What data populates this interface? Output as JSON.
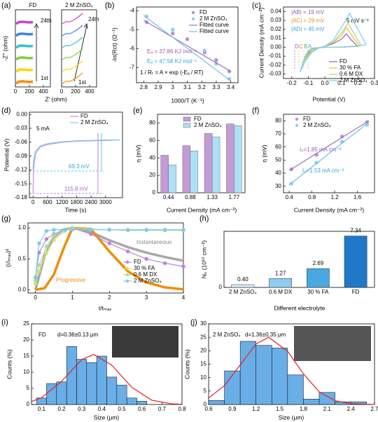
{
  "chart_data": [
    {
      "type": "line",
      "panel": "(a)",
      "title": "FD",
      "xlabel": "Z' (ohm)",
      "ylabel": "-Z'' (ohm)",
      "annotations": [
        "24th",
        "1st"
      ],
      "x": [
        10,
        50,
        100,
        150,
        200,
        250
      ],
      "xlim": [
        0,
        500
      ],
      "xticks": [
        0,
        200,
        400
      ],
      "ylim": [
        0,
        1100
      ],
      "yticks": [],
      "series": [
        {
          "color": "#ff8c00",
          "values": [
            50,
            75,
            80,
            75,
            70,
            75
          ]
        },
        {
          "color": "#ffd700",
          "values": [
            220,
            245,
            250,
            245,
            240,
            245
          ]
        },
        {
          "color": "#7fd03a",
          "values": [
            390,
            415,
            420,
            415,
            410,
            415
          ]
        },
        {
          "color": "#30c8c8",
          "values": [
            560,
            585,
            590,
            585,
            580,
            585
          ]
        },
        {
          "color": "#4080f0",
          "values": [
            730,
            755,
            760,
            755,
            750,
            755
          ]
        },
        {
          "color": "#d040d0",
          "values": [
            900,
            925,
            930,
            925,
            920,
            925
          ]
        }
      ]
    },
    {
      "type": "line",
      "title": "2 M ZnSO₄",
      "annotations": [
        "24th",
        "1st"
      ],
      "x": [
        10,
        60,
        120,
        180,
        240,
        300
      ],
      "xlim": [
        0,
        500
      ],
      "xticks": [
        0,
        200,
        400
      ],
      "ylim": [
        0,
        1100
      ],
      "yticks": [],
      "series": [
        {
          "color": "#ff8c00",
          "values": [
            50,
            80,
            80,
            110,
            150,
            200
          ]
        },
        {
          "color": "#ffd700",
          "values": [
            220,
            250,
            250,
            280,
            320,
            370
          ]
        },
        {
          "color": "#7fd03a",
          "values": [
            390,
            420,
            420,
            450,
            490,
            540
          ]
        },
        {
          "color": "#30c8c8",
          "values": [
            560,
            590,
            590,
            620,
            660,
            710
          ]
        },
        {
          "color": "#4080f0",
          "values": [
            730,
            760,
            760,
            790,
            830,
            880
          ]
        },
        {
          "color": "#d040d0",
          "values": [
            900,
            930,
            930,
            960,
            1000,
            1050
          ]
        }
      ]
    },
    {
      "type": "line",
      "panel": "(b)",
      "xlabel": "1000/T (K⁻¹)",
      "ylabel": "-ln(Rct) (Ω⁻¹)",
      "annotations": [
        "Eₐ = 37.86 KJ mol⁻¹",
        "Eₐ = 47.58 KJ mol⁻¹",
        "1 / Rₜ = A × exp (-Eₐ / RT)"
      ],
      "xlim": [
        2.75,
        3.45
      ],
      "xticks": [
        2.8,
        2.9,
        3.0,
        3.1,
        3.2,
        3.3,
        3.4
      ],
      "ylim": [
        -7.8,
        -3.8
      ],
      "yticks": [
        -4,
        -5,
        -6,
        -7
      ],
      "series": [
        {
          "name": "FD",
          "color": "#b98fd6",
          "style": "markers",
          "x": [
            2.82,
            3.0,
            3.1,
            3.22,
            3.3,
            3.39
          ],
          "values": [
            -4.6,
            -5.2,
            -5.5,
            -6.2,
            -6.6,
            -7.2
          ]
        },
        {
          "name": "2 M ZnSO₄",
          "color": "#8ccfee",
          "style": "markers",
          "x": [
            2.82,
            3.0,
            3.22,
            3.3,
            3.39
          ],
          "values": [
            -4.3,
            -5.0,
            -6.1,
            -6.8,
            -7.6
          ]
        },
        {
          "name": "Fitted curve",
          "color": "#a070c0",
          "x": [
            2.8,
            3.4
          ],
          "values": [
            -4.5,
            -7.2
          ]
        },
        {
          "name": "Fitted curve",
          "color": "#6cc0e8",
          "x": [
            2.8,
            3.4
          ],
          "values": [
            -4.25,
            -7.7
          ]
        }
      ]
    },
    {
      "type": "line",
      "panel": "(c)",
      "xlabel": "Potential (V)",
      "ylabel": "Current Density (mA cm⁻²)",
      "annotations": [
        "|AB| = 19 mV",
        "|AC| = 29 mV",
        "|AD| = 45 mV",
        "5 mV s⁻¹",
        "D",
        "C",
        "B",
        "A"
      ],
      "xlim": [
        -0.25,
        0.3
      ],
      "xticks": [
        -0.2,
        -0.1,
        {
          "value": 0,
          "label": "0.0"
        },
        0.1,
        0.2,
        0.3
      ],
      "ylim": [
        -0.035,
        0.045
      ],
      "yticks": [
        -0.03,
        -0.02,
        -0.01,
        {
          "value": 0,
          "label": "0.00"
        },
        0.01,
        0.02,
        0.03,
        0.04
      ],
      "series": [
        {
          "name": "FD",
          "color": "#9b59b6",
          "x": [
            -0.12,
            -0.1,
            -0.07,
            -0.04,
            0,
            0.05,
            0.1,
            0.13,
            0.16,
            0.2,
            0.16,
            0.1,
            0,
            -0.07,
            -0.1,
            -0.12
          ],
          "values": [
            -0.012,
            -0.007,
            -0.003,
            -0.001,
            0.001,
            0.004,
            0.009,
            0.015,
            0.008,
            0.001,
            0.001,
            0,
            0,
            -0.001,
            -0.004,
            -0.012
          ]
        },
        {
          "name": "30 % FA",
          "color": "#f0b840",
          "x": [
            -0.13,
            -0.1,
            -0.07,
            -0.04,
            0,
            0.05,
            0.1,
            0.13,
            0.17,
            0.21,
            0.17,
            0.1,
            0,
            -0.07,
            -0.1,
            -0.13
          ],
          "values": [
            -0.017,
            -0.009,
            -0.003,
            -0.001,
            0.001,
            0.005,
            0.013,
            0.022,
            0.011,
            0.002,
            0.001,
            0,
            0,
            -0.001,
            -0.006,
            -0.017
          ]
        },
        {
          "name": "0.6 M DX",
          "color": "#a8d878",
          "x": [
            -0.14,
            -0.11,
            -0.08,
            -0.04,
            0,
            0.05,
            0.1,
            0.14,
            0.18,
            0.22,
            0.18,
            0.1,
            0,
            -0.08,
            -0.11,
            -0.14
          ],
          "values": [
            -0.02,
            -0.011,
            -0.004,
            -0.001,
            0.001,
            0.006,
            0.016,
            0.027,
            0.014,
            0.002,
            0.001,
            0,
            0,
            -0.001,
            -0.007,
            -0.02
          ]
        },
        {
          "name": "2 M ZnSO₄",
          "color": "#7ecbef",
          "x": [
            -0.15,
            -0.12,
            -0.08,
            -0.04,
            0,
            0.05,
            0.1,
            0.15,
            0.2,
            0.25,
            0.2,
            0.1,
            0,
            -0.08,
            -0.12,
            -0.15
          ],
          "values": [
            -0.028,
            -0.016,
            -0.006,
            -0.001,
            0.001,
            0.008,
            0.022,
            0.038,
            0.02,
            0.003,
            0.001,
            0,
            0,
            -0.002,
            -0.01,
            -0.028
          ]
        }
      ]
    },
    {
      "type": "line",
      "panel": "(d)",
      "xlabel": "Time (s)",
      "ylabel": "Potential (V)",
      "annotations": [
        "5 mA",
        "69.3 mV",
        "115.8 mV"
      ],
      "x": [
        0,
        20,
        100,
        300,
        600,
        1200,
        1800,
        2400,
        3000,
        3600
      ],
      "xlim": [
        -150,
        3700
      ],
      "xticks": [
        0,
        600,
        1200,
        1800,
        2400,
        3000
      ],
      "ylim": [
        -0.18,
        0.005
      ],
      "yticks": [
        {
          "value": 0,
          "label": "0.00"
        },
        -0.03,
        -0.06,
        -0.09,
        -0.12,
        -0.15,
        -0.18
      ],
      "series": [
        {
          "name": "FD",
          "color": "#c090e0",
          "values": [
            -0.17,
            -0.12,
            -0.085,
            -0.07,
            -0.065,
            -0.06,
            -0.058,
            -0.057,
            -0.056,
            -0.055
          ]
        },
        {
          "name": "2 M ZnSO₄",
          "color": "#7ecbef",
          "values": [
            -0.12,
            -0.1,
            -0.08,
            -0.068,
            -0.063,
            -0.059,
            -0.057,
            -0.056,
            -0.055,
            -0.055
          ]
        }
      ]
    },
    {
      "type": "bar",
      "panel": "(e)",
      "xlabel": "Current Density (mA cm⁻²)",
      "ylabel": "η (mV)",
      "categories": [
        "0.44",
        "0.88",
        "1.33",
        "1.77"
      ],
      "ylim": [
        0,
        90
      ],
      "yticks": [
        0,
        20,
        40,
        60,
        80
      ],
      "series": [
        {
          "name": "FD",
          "color": "#c59bd6",
          "values": [
            43,
            54,
            68,
            79
          ]
        },
        {
          "name": "2 M ZnSO₄",
          "color": "#aee0f5",
          "values": [
            32,
            48,
            64,
            77
          ]
        }
      ]
    },
    {
      "type": "line",
      "panel": "(f)",
      "xlabel": "Current Density (mA cm⁻²)",
      "ylabel": "η (mV)",
      "annotations": [
        "I₀=1.85 mA cm⁻²",
        "I₀=1.53 mA cm⁻²"
      ],
      "xlim": [
        0.3,
        1.9
      ],
      "xticks": [
        0.4,
        0.8,
        1.2,
        1.6
      ],
      "ylim": [
        25,
        85
      ],
      "yticks": [
        30,
        40,
        50,
        60,
        70,
        80
      ],
      "series": [
        {
          "name": "FD",
          "color": "#b98fd6",
          "style": "markers",
          "x": [
            0.44,
            0.88,
            1.33,
            1.77
          ],
          "values": [
            43,
            54,
            68,
            79
          ]
        },
        {
          "name": "2 M ZnSO₄",
          "color": "#8ccfee",
          "style": "markers",
          "x": [
            0.44,
            0.88,
            1.33,
            1.77
          ],
          "values": [
            32,
            48,
            64,
            77
          ]
        },
        {
          "color": "#a070c0",
          "x": [
            0.4,
            1.8
          ],
          "values": [
            42,
            80
          ]
        },
        {
          "color": "#6cc0e8",
          "x": [
            0.4,
            1.8
          ],
          "values": [
            31,
            79
          ]
        }
      ]
    },
    {
      "type": "line",
      "panel": "(g)",
      "xlabel": "t/tₘₐₓ",
      "ylabel": "(i/iₘₐₓ)²",
      "annotations": [
        "Instantaneous",
        "Progressive"
      ],
      "xlim": [
        -0.2,
        4
      ],
      "xticks": [
        0,
        1,
        2,
        3,
        4
      ],
      "ylim": [
        -0.05,
        1.08
      ],
      "yticks": [
        {
          "value": 0,
          "label": "0.0"
        },
        0.5,
        {
          "value": 1,
          "label": "1.0"
        }
      ],
      "series": [
        {
          "color": "#a8a8a8",
          "x": [
            0,
            0.25,
            0.5,
            0.75,
            1,
            1.5,
            2,
            2.5,
            3,
            3.5,
            4
          ],
          "values": [
            0,
            0.55,
            0.85,
            0.97,
            1,
            0.93,
            0.8,
            0.69,
            0.6,
            0.53,
            0.47
          ]
        },
        {
          "color": "#f08c00",
          "x": [
            0,
            0.25,
            0.5,
            0.75,
            1,
            1.5,
            2,
            2.5,
            3,
            3.5,
            4
          ],
          "values": [
            0,
            0.03,
            0.25,
            0.65,
            1,
            0.98,
            0.62,
            0.3,
            0.12,
            0.04,
            0.01
          ]
        },
        {
          "name": "FD",
          "color": "#c080e0",
          "style": "both",
          "x": [
            0,
            0.1,
            0.3,
            0.5,
            0.8,
            1,
            1.5,
            2,
            2.5,
            3,
            3.5,
            4
          ],
          "values": [
            0.2,
            0.6,
            0.82,
            0.9,
            0.97,
            1,
            0.9,
            0.75,
            0.62,
            0.5,
            0.43,
            0.38
          ]
        },
        {
          "name": "30 % FA",
          "color": "#d8e060",
          "style": "both",
          "x": [
            0,
            0.1,
            0.3,
            0.5,
            0.8,
            1,
            1.5,
            2,
            2.5,
            3,
            3.5,
            4
          ],
          "values": [
            0.1,
            0.3,
            0.6,
            0.8,
            0.95,
            1,
            0.98,
            0.97,
            0.97,
            0.97,
            0.97,
            0.97
          ]
        },
        {
          "name": "0.6 M DX",
          "color": "#a8e0a0",
          "style": "both",
          "x": [
            0,
            0.1,
            0.3,
            0.5,
            0.8,
            1,
            1.5,
            2,
            2.5,
            3,
            3.5,
            4
          ],
          "values": [
            0.15,
            0.4,
            0.7,
            0.88,
            0.97,
            1,
            0.98,
            0.97,
            0.96,
            0.96,
            0.96,
            0.96
          ]
        },
        {
          "name": "2 M ZnSO₄",
          "color": "#7ecbef",
          "style": "both",
          "x": [
            0,
            0.1,
            0.3,
            0.5,
            0.8,
            1,
            1.5,
            2,
            2.5,
            3,
            3.5,
            4
          ],
          "values": [
            0.2,
            0.75,
            0.95,
            0.97,
            0.97,
            0.97,
            0.97,
            0.97,
            0.97,
            0.97,
            0.97,
            0.97
          ]
        }
      ]
    },
    {
      "type": "bar",
      "panel": "(h)",
      "xlabel": "Different electrolyte",
      "ylabel": "N₀ (10¹⁰ cm⁻²)",
      "categories": [
        "2 M ZnSO₄",
        "0.6 M DX",
        "30 % FA",
        "FD"
      ],
      "values": [
        0.4,
        1.27,
        2.69,
        7.34
      ],
      "value_labels": [
        "0.40",
        "1.27",
        "2.69",
        "7.34"
      ],
      "colors": [
        "#d6eefa",
        "#8fcdf0",
        "#4aa8e0",
        "#1f78c8"
      ],
      "ylim": [
        0,
        8
      ],
      "yticks": [
        0
      ]
    },
    {
      "type": "histogram",
      "panel": "(i)",
      "title": "FD",
      "annotations": [
        "d=0.36±0.13 μm"
      ],
      "xlabel": "Size (μm)",
      "ylabel": "Counts (%)",
      "bins": [
        0.075,
        0.125,
        0.175,
        0.225,
        0.275,
        0.325,
        0.375,
        0.425,
        0.475,
        0.525,
        0.575,
        0.625
      ],
      "values": [
        2,
        6.5,
        7,
        18,
        14,
        13,
        15,
        8.5,
        6,
        2,
        1
      ],
      "color": "#6aaee8",
      "xlim": [
        0.05,
        0.8
      ],
      "xticks": [
        0.1,
        0.2,
        0.3,
        0.4,
        0.5,
        0.6,
        0.7,
        0.8
      ],
      "ylim": [
        0,
        25
      ],
      "yticks": [
        0,
        5,
        10,
        15,
        20,
        25
      ],
      "series": [
        {
          "color": "#e02020",
          "x": [
            0.05,
            0.1,
            0.2,
            0.3,
            0.36,
            0.45,
            0.55,
            0.65,
            0.75,
            0.8
          ],
          "values": [
            0.9,
            2.1,
            7.2,
            13.9,
            15.5,
            12.2,
            5.3,
            1.3,
            0.2,
            0.05
          ]
        }
      ]
    },
    {
      "type": "histogram",
      "panel": "(j)",
      "title": "2 M ZnSO₄",
      "annotations": [
        "d=1.36±0.35 μm"
      ],
      "xlabel": "Size (μm)",
      "ylabel": "Counts (%)",
      "bins": [
        0.6,
        0.8,
        1.0,
        1.2,
        1.4,
        1.6,
        1.8,
        2.0,
        2.2,
        2.4,
        2.6
      ],
      "values": [
        1.5,
        12.5,
        23.5,
        22,
        21,
        11,
        2,
        4.5,
        1,
        1
      ],
      "color": "#6aaee8",
      "xlim": [
        0.6,
        2.7
      ],
      "xticks": [
        0.6,
        0.9,
        1.2,
        1.5,
        1.8,
        2.1,
        2.4,
        2.7
      ],
      "ylim": [
        0,
        30
      ],
      "yticks": [
        0,
        5,
        10,
        15,
        20,
        25,
        30
      ],
      "series": [
        {
          "color": "#e02020",
          "x": [
            0.6,
            0.8,
            1.0,
            1.2,
            1.36,
            1.6,
            1.8,
            2.0,
            2.2,
            2.4,
            2.7
          ],
          "values": [
            2.4,
            7,
            14.7,
            22.5,
            25,
            19.8,
            11.4,
            4.7,
            1.4,
            0.3,
            0
          ]
        }
      ]
    }
  ]
}
